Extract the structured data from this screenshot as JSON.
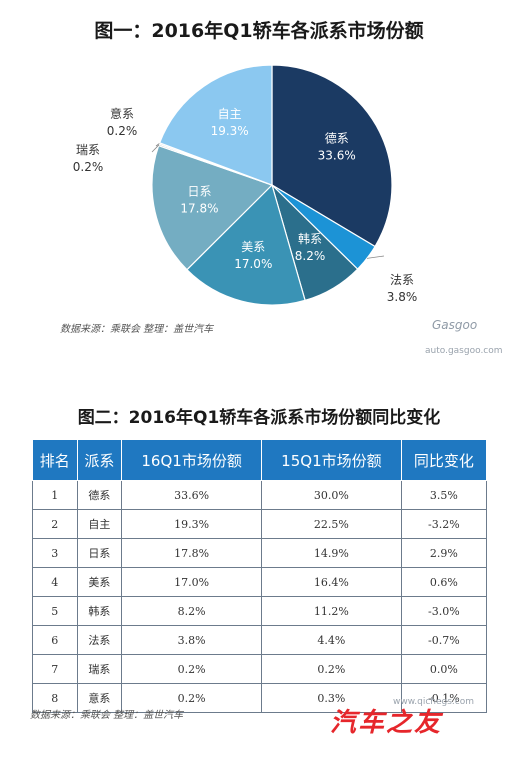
{
  "figure1": {
    "title": "图一：2016年Q1轿车各派系市场份额"
  },
  "figure2": {
    "title": "图二：2016年Q1轿车各派系市场份额同比变化"
  },
  "chart_data": [
    {
      "type": "pie",
      "title": "图一：2016年Q1轿车各派系市场份额",
      "slices": [
        {
          "label": "德系",
          "value": 33.6,
          "text": "33.6%",
          "color": "#1b3a63"
        },
        {
          "label": "法系",
          "value": 3.8,
          "text": "3.8%",
          "color": "#1c93d6"
        },
        {
          "label": "韩系",
          "value": 8.2,
          "text": "8.2%",
          "color": "#2b6f8c"
        },
        {
          "label": "美系",
          "value": 17.0,
          "text": "17.0%",
          "color": "#3a93b5"
        },
        {
          "label": "日系",
          "value": 17.8,
          "text": "17.8%",
          "color": "#74adc2"
        },
        {
          "label": "瑞系",
          "value": 0.2,
          "text": "0.2%",
          "color": "#aab4bd"
        },
        {
          "label": "意系",
          "value": 0.2,
          "text": "0.2%",
          "color": "#c9d0d6"
        },
        {
          "label": "自主",
          "value": 19.3,
          "text": "19.3%",
          "color": "#8bc8f0"
        }
      ]
    },
    {
      "type": "table",
      "title": "图二：2016年Q1轿车各派系市场份额同比变化",
      "columns": [
        "排名",
        "派系",
        "16Q1市场份额",
        "15Q1市场份额",
        "同比变化"
      ],
      "rows": [
        [
          "1",
          "德系",
          "33.6%",
          "30.0%",
          "3.5%"
        ],
        [
          "2",
          "自主",
          "19.3%",
          "22.5%",
          "-3.2%"
        ],
        [
          "3",
          "日系",
          "17.8%",
          "14.9%",
          "2.9%"
        ],
        [
          "4",
          "美系",
          "17.0%",
          "16.4%",
          "0.6%"
        ],
        [
          "5",
          "韩系",
          "8.2%",
          "11.2%",
          "-3.0%"
        ],
        [
          "6",
          "法系",
          "3.8%",
          "4.4%",
          "-0.7%"
        ],
        [
          "7",
          "瑞系",
          "0.2%",
          "0.2%",
          "0.0%"
        ],
        [
          "8",
          "意系",
          "0.2%",
          "0.3%",
          "-0.1%"
        ]
      ]
    }
  ],
  "source1": "数据来源：乘联会 整理：盖世汽车",
  "source2": "数据来源：乘联会 整理：盖世汽车",
  "watermark": {
    "logo": "Gasgoo",
    "url": "auto.gasgoo.com",
    "url2": "www.qichegs.com",
    "brand": "汽车之友"
  },
  "colors": {
    "header_bg": "#1f78c1",
    "header_text": "#ffffff"
  }
}
